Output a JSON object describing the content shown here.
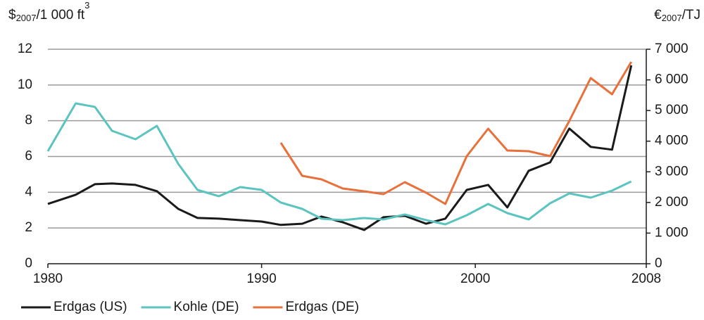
{
  "chart_data": {
    "type": "line",
    "y_label_parts": [
      "$",
      "2007",
      "/1 000 ft",
      "3"
    ],
    "y2_label_parts": [
      "€",
      "2007",
      "/TJ"
    ],
    "x": [
      1980.0,
      1981.3,
      1982.2,
      1983.0,
      1984.1,
      1985.1,
      1986.1,
      1987.0,
      1988.0,
      1989.0,
      1990.0,
      1990.9,
      1991.9,
      1992.8,
      1993.8,
      1994.8,
      1995.7,
      1996.7,
      1997.7,
      1998.6,
      1999.6,
      2000.6,
      2001.5,
      2002.5,
      2003.5,
      2004.4,
      2005.4,
      2006.4,
      2007.3
    ],
    "series": [
      {
        "name": "Erdgas (US)",
        "color": "#1a1a1a",
        "values": [
          3.35,
          3.86,
          4.45,
          4.49,
          4.41,
          4.06,
          3.07,
          2.56,
          2.52,
          2.44,
          2.36,
          2.17,
          2.24,
          2.64,
          2.32,
          1.89,
          2.6,
          2.68,
          2.24,
          2.52,
          4.13,
          4.41,
          3.15,
          5.2,
          5.67,
          7.56,
          6.54,
          6.38,
          11.1
        ]
      },
      {
        "name": "Kohle (DE)",
        "color": "#5bc4bf",
        "axis": "y2",
        "values": [
          3672,
          5233,
          5118,
          4338,
          4062,
          4498,
          3259,
          2410,
          2203,
          2502,
          2410,
          1997,
          1790,
          1469,
          1423,
          1492,
          1446,
          1607,
          1423,
          1285,
          1584,
          1951,
          1652,
          1446,
          1974,
          2295,
          2157,
          2387,
          2685
        ]
      },
      {
        "name": "Erdgas (DE)",
        "color": "#e8703a",
        "axis": "y2",
        "values": [
          null,
          null,
          null,
          null,
          null,
          null,
          null,
          null,
          null,
          null,
          null,
          3947,
          2869,
          2754,
          2456,
          2364,
          2272,
          2662,
          2318,
          1951,
          3511,
          4406,
          3695,
          3672,
          3511,
          4659,
          6059,
          5531,
          6587
        ]
      }
    ],
    "xlim": [
      1980,
      2008
    ],
    "xticks": [
      1980,
      1990,
      2000,
      2008
    ],
    "ylim": [
      0,
      12
    ],
    "yticks": [
      0,
      2,
      4,
      6,
      8,
      10,
      12
    ],
    "y2lim": [
      0,
      7000
    ],
    "y2ticks": [
      0,
      {
        "value": 1000,
        "label": "1 000"
      },
      {
        "value": 2000,
        "label": "2 000"
      },
      {
        "value": 3000,
        "label": "3 000"
      },
      {
        "value": 4000,
        "label": "4 000"
      },
      {
        "value": 5000,
        "label": "5 000"
      },
      {
        "value": 6000,
        "label": "6 000"
      },
      {
        "value": 7000,
        "label": "7 000"
      }
    ],
    "grid": true
  }
}
